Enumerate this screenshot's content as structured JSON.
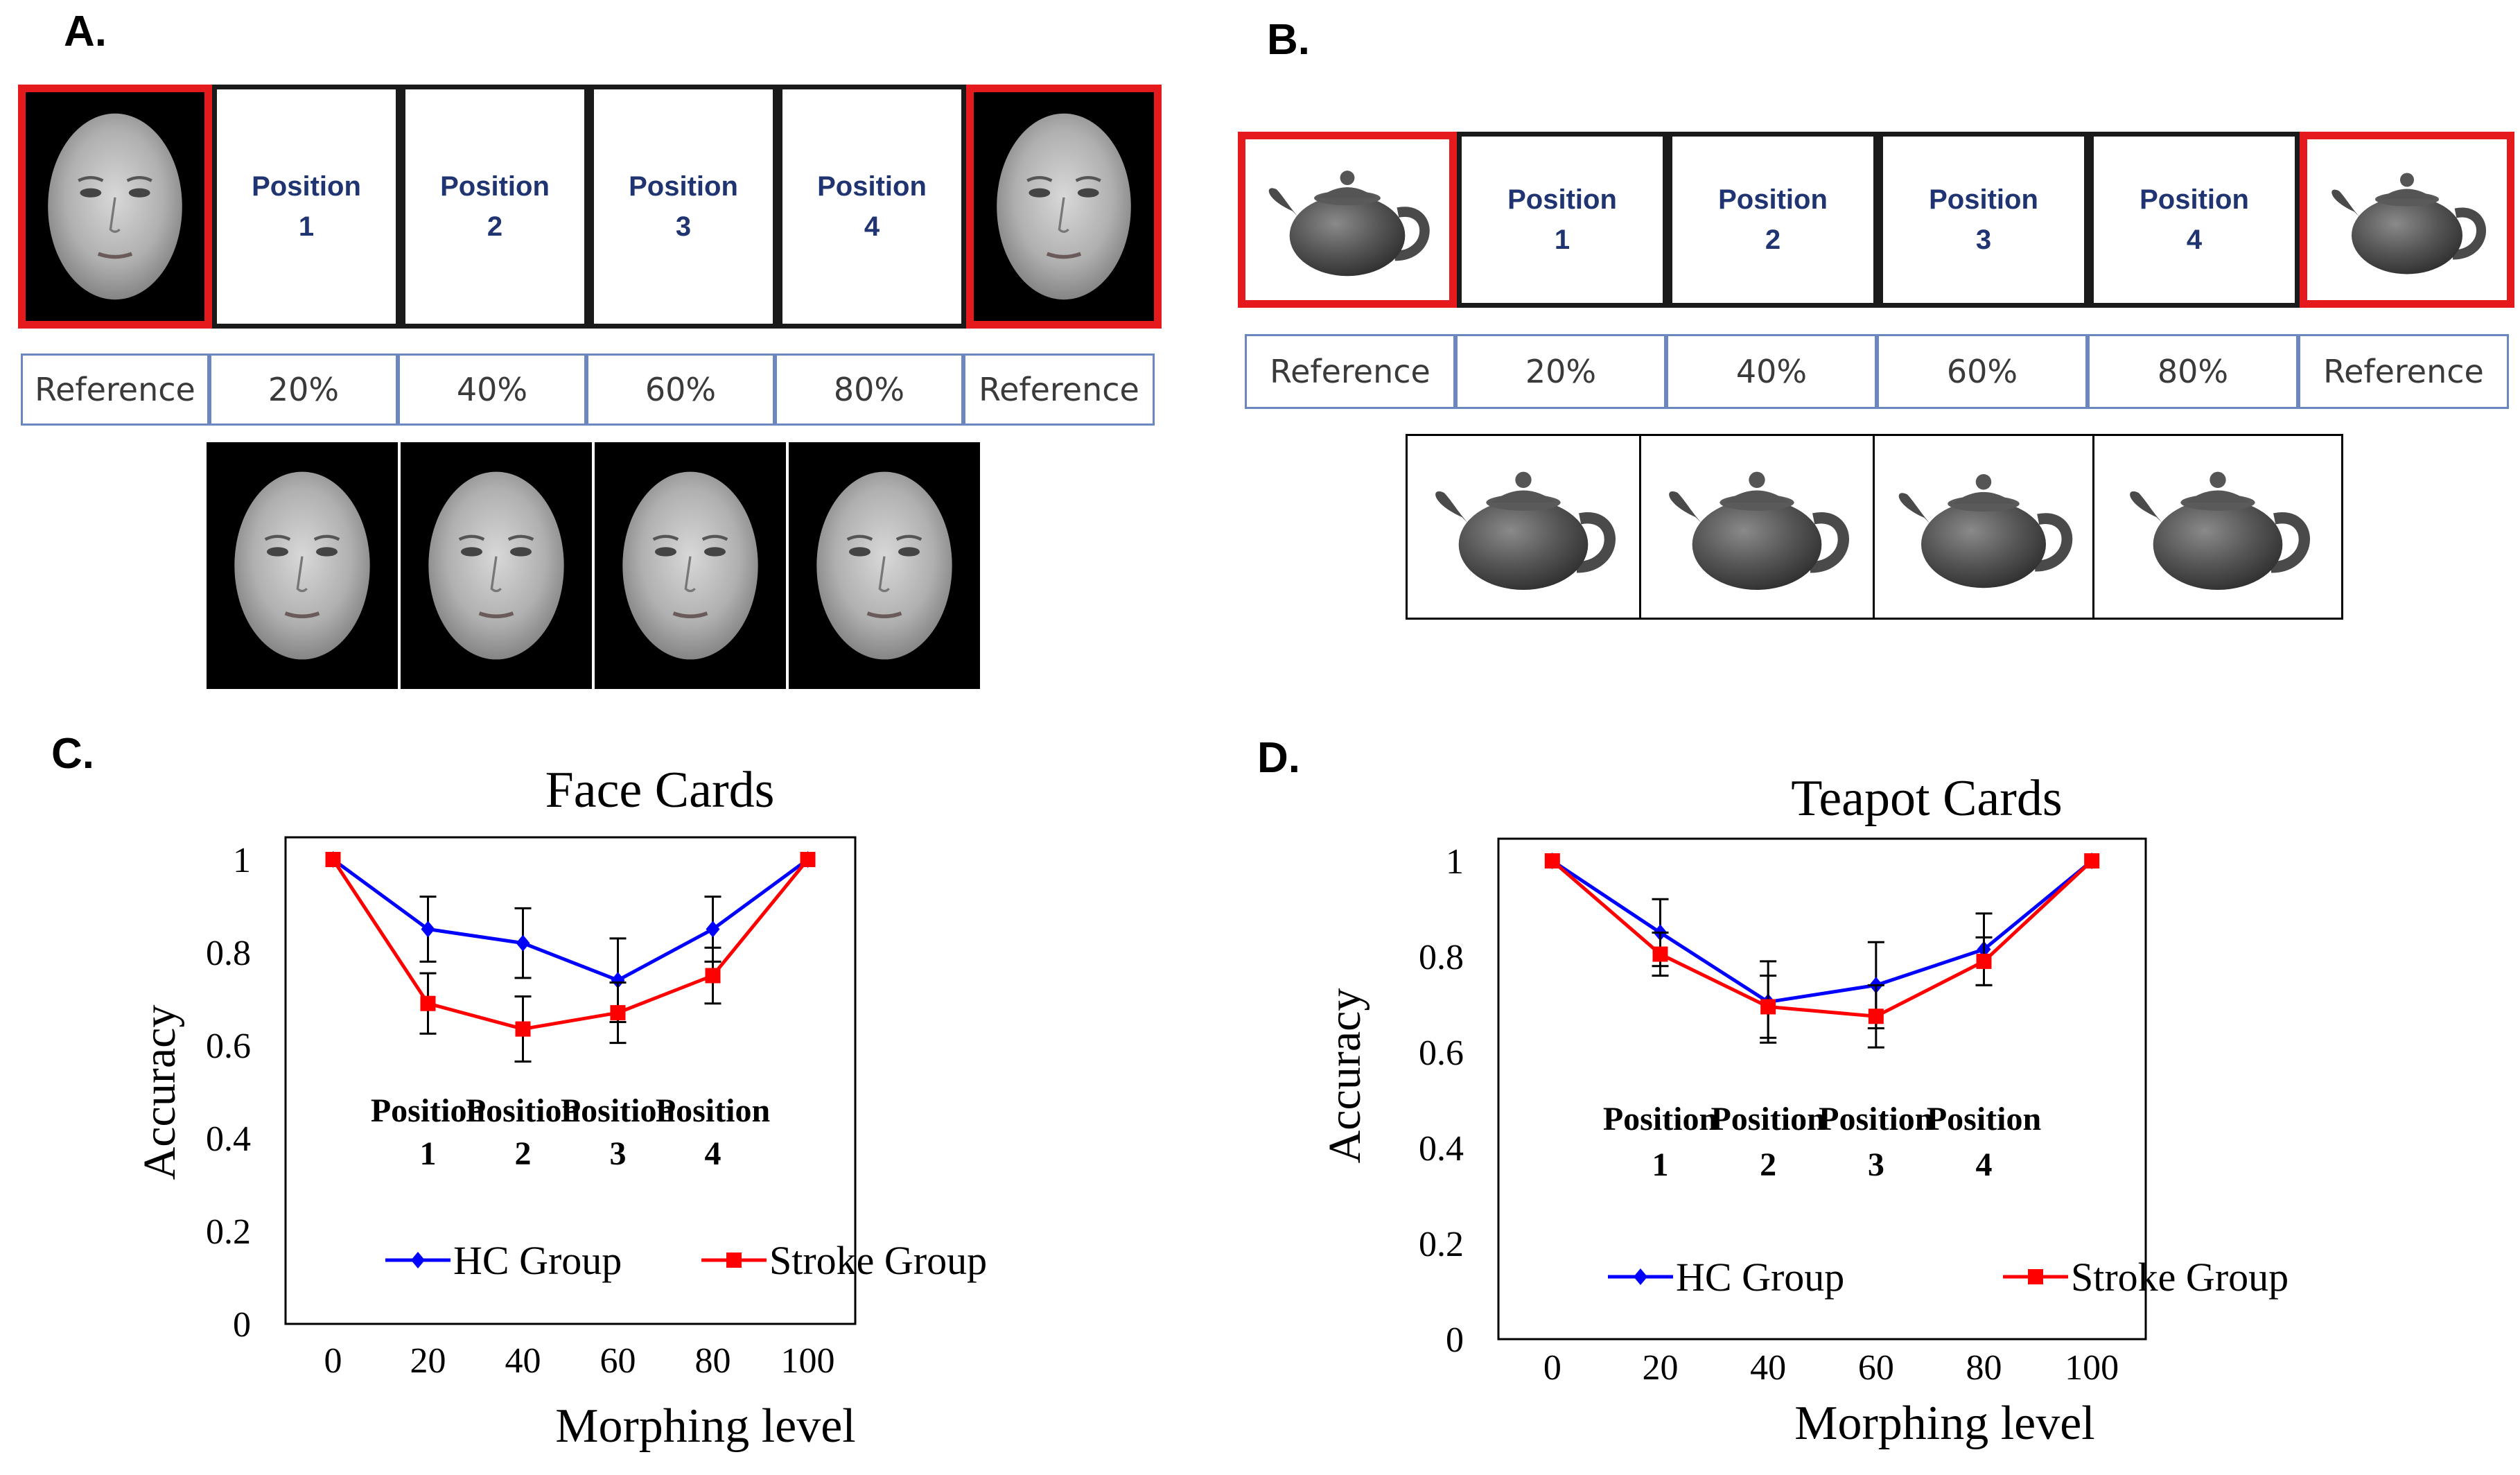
{
  "panel_a": {
    "label": "A.",
    "positions": [
      "Position\n1",
      "Position\n2",
      "Position\n3",
      "Position\n4"
    ],
    "levels": [
      "Reference",
      "20%",
      "40%",
      "60%",
      "80%",
      "Reference"
    ]
  },
  "panel_b": {
    "label": "B.",
    "positions": [
      "Position\n1",
      "Position\n2",
      "Position\n3",
      "Position\n4"
    ],
    "levels": [
      "Reference",
      "20%",
      "40%",
      "60%",
      "80%",
      "Reference"
    ]
  },
  "chart_data": [
    {
      "panel_label": "C.",
      "type": "line",
      "title": "Face Cards",
      "xlabel": "Morphing level",
      "ylabel": "Accuracy",
      "x": [
        0,
        20,
        40,
        60,
        80,
        100
      ],
      "xticks": [
        "0",
        "20",
        "40",
        "60",
        "80",
        "100"
      ],
      "yticks": [
        "0",
        "0.2",
        "0.4",
        "0.6",
        "0.8",
        "1"
      ],
      "ylim": [
        0,
        1
      ],
      "xlim": [
        -10,
        110
      ],
      "grid": false,
      "legend": "bottom-center",
      "series": [
        {
          "name": "HC Group",
          "color": "#0000ff",
          "marker": "diamond",
          "values": [
            1,
            0.85,
            0.82,
            0.74,
            0.85,
            1
          ],
          "errors": [
            0,
            0.07,
            0.075,
            0.09,
            0.07,
            0
          ]
        },
        {
          "name": "Stroke Group",
          "color": "#ff0000",
          "marker": "square",
          "values": [
            1,
            0.69,
            0.635,
            0.67,
            0.75,
            1
          ],
          "errors": [
            0,
            0.065,
            0.07,
            0.065,
            0.06,
            0
          ]
        }
      ],
      "annotations": [
        {
          "x": 20,
          "text": [
            "Position",
            "1"
          ]
        },
        {
          "x": 40,
          "text": [
            "Position",
            "2"
          ]
        },
        {
          "x": 60,
          "text": [
            "Position",
            "3"
          ]
        },
        {
          "x": 80,
          "text": [
            "Position",
            "4"
          ]
        }
      ]
    },
    {
      "panel_label": "D.",
      "type": "line",
      "title": "Teapot Cards",
      "xlabel": "Morphing level",
      "ylabel": "Accuracy",
      "x": [
        0,
        20,
        40,
        60,
        80,
        100
      ],
      "xticks": [
        "0",
        "20",
        "40",
        "60",
        "80",
        "100"
      ],
      "yticks": [
        "0",
        "0.2",
        "0.4",
        "0.6",
        "0.8",
        "1"
      ],
      "ylim": [
        0,
        1
      ],
      "xlim": [
        -10,
        110
      ],
      "grid": false,
      "legend": "bottom-center",
      "series": [
        {
          "name": "HC Group",
          "color": "#0000ff",
          "marker": "diamond",
          "values": [
            1,
            0.85,
            0.705,
            0.74,
            0.815,
            1
          ],
          "errors": [
            0,
            0.07,
            0.085,
            0.09,
            0.075,
            0
          ]
        },
        {
          "name": "Stroke Group",
          "color": "#ff0000",
          "marker": "square",
          "values": [
            1,
            0.805,
            0.695,
            0.675,
            0.79,
            1
          ],
          "errors": [
            0,
            0.045,
            0.065,
            0.065,
            0.05,
            0
          ]
        }
      ],
      "annotations": [
        {
          "x": 20,
          "text": [
            "Position",
            "1"
          ]
        },
        {
          "x": 40,
          "text": [
            "Position",
            "2"
          ]
        },
        {
          "x": 60,
          "text": [
            "Position",
            "3"
          ]
        },
        {
          "x": 80,
          "text": [
            "Position",
            "4"
          ]
        }
      ]
    }
  ]
}
